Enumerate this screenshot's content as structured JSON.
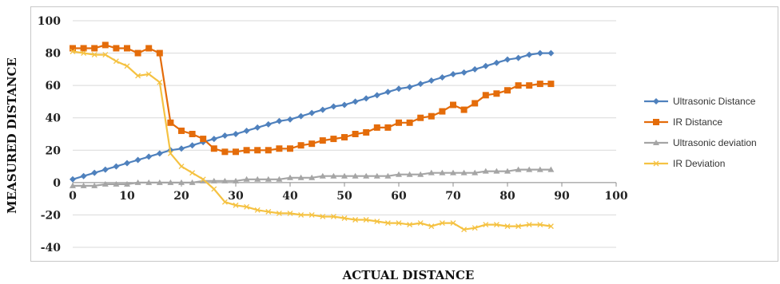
{
  "chart_data": {
    "type": "line",
    "xlabel": "ACTUAL DISTANCE",
    "ylabel": "MEASURED DISTANCE",
    "xlim": [
      0,
      100
    ],
    "ylim": [
      -40,
      100
    ],
    "xticks": [
      0,
      10,
      20,
      30,
      40,
      50,
      60,
      70,
      80,
      90,
      100
    ],
    "yticks": [
      -40,
      -20,
      0,
      20,
      40,
      60,
      80,
      100
    ],
    "grid": "horizontal",
    "legend_position": "right",
    "series": [
      {
        "name": "Ultrasonic Distance",
        "color": "#4f81bd",
        "marker": "diamond",
        "x": [
          0,
          2,
          4,
          6,
          8,
          10,
          12,
          14,
          16,
          18,
          20,
          22,
          24,
          26,
          28,
          30,
          32,
          34,
          36,
          38,
          40,
          42,
          44,
          46,
          48,
          50,
          52,
          54,
          56,
          58,
          60,
          62,
          64,
          66,
          68,
          70,
          72,
          74,
          76,
          78,
          80,
          82,
          84,
          86,
          88
        ],
        "y": [
          2,
          4,
          6,
          8,
          10,
          12,
          14,
          16,
          18,
          20,
          21,
          23,
          25,
          27,
          29,
          30,
          32,
          34,
          36,
          38,
          39,
          41,
          43,
          45,
          47,
          48,
          50,
          52,
          54,
          56,
          58,
          59,
          61,
          63,
          65,
          67,
          68,
          70,
          72,
          74,
          76,
          77,
          79,
          80,
          80
        ]
      },
      {
        "name": "IR Distance",
        "color": "#e46c0a",
        "marker": "square",
        "x": [
          0,
          2,
          4,
          6,
          8,
          10,
          12,
          14,
          16,
          18,
          20,
          22,
          24,
          26,
          28,
          30,
          32,
          34,
          36,
          38,
          40,
          42,
          44,
          46,
          48,
          50,
          52,
          54,
          56,
          58,
          60,
          62,
          64,
          66,
          68,
          70,
          72,
          74,
          76,
          78,
          80,
          82,
          84,
          86,
          88
        ],
        "y": [
          83,
          83,
          83,
          85,
          83,
          83,
          80,
          83,
          80,
          37,
          32,
          30,
          27,
          21,
          19,
          19,
          20,
          20,
          20,
          21,
          21,
          23,
          24,
          26,
          27,
          28,
          30,
          31,
          34,
          34,
          37,
          37,
          40,
          41,
          44,
          48,
          45,
          49,
          54,
          55,
          57,
          60,
          60,
          61,
          61
        ]
      },
      {
        "name": "Ultrasonic deviation",
        "color": "#a5a5a5",
        "marker": "triangle",
        "x": [
          0,
          2,
          4,
          6,
          8,
          10,
          12,
          14,
          16,
          18,
          20,
          22,
          24,
          26,
          28,
          30,
          32,
          34,
          36,
          38,
          40,
          42,
          44,
          46,
          48,
          50,
          52,
          54,
          56,
          58,
          60,
          62,
          64,
          66,
          68,
          70,
          72,
          74,
          76,
          78,
          80,
          82,
          84,
          86,
          88
        ],
        "y": [
          -2,
          -2,
          -2,
          -1,
          -1,
          -1,
          0,
          0,
          0,
          0,
          0,
          0,
          1,
          1,
          1,
          1,
          2,
          2,
          2,
          2,
          3,
          3,
          3,
          4,
          4,
          4,
          4,
          4,
          4,
          4,
          5,
          5,
          5,
          6,
          6,
          6,
          6,
          6,
          7,
          7,
          7,
          8,
          8,
          8,
          8
        ]
      },
      {
        "name": "IR Deviation",
        "color": "#f5c242",
        "marker": "x",
        "x": [
          0,
          2,
          4,
          6,
          8,
          10,
          12,
          14,
          16,
          18,
          20,
          22,
          24,
          26,
          28,
          30,
          32,
          34,
          36,
          38,
          40,
          42,
          44,
          46,
          48,
          50,
          52,
          54,
          56,
          58,
          60,
          62,
          64,
          66,
          68,
          70,
          72,
          74,
          76,
          78,
          80,
          82,
          84,
          86,
          88
        ],
        "y": [
          81,
          80,
          79,
          79,
          75,
          72,
          66,
          67,
          62,
          18,
          10,
          6,
          2,
          -4,
          -12,
          -14,
          -15,
          -17,
          -18,
          -19,
          -19,
          -20,
          -20,
          -21,
          -21,
          -22,
          -23,
          -23,
          -24,
          -25,
          -25,
          -26,
          -25,
          -27,
          -25,
          -25,
          -29,
          -28,
          -26,
          -26,
          -27,
          -27,
          -26,
          -26,
          -27
        ]
      }
    ]
  }
}
